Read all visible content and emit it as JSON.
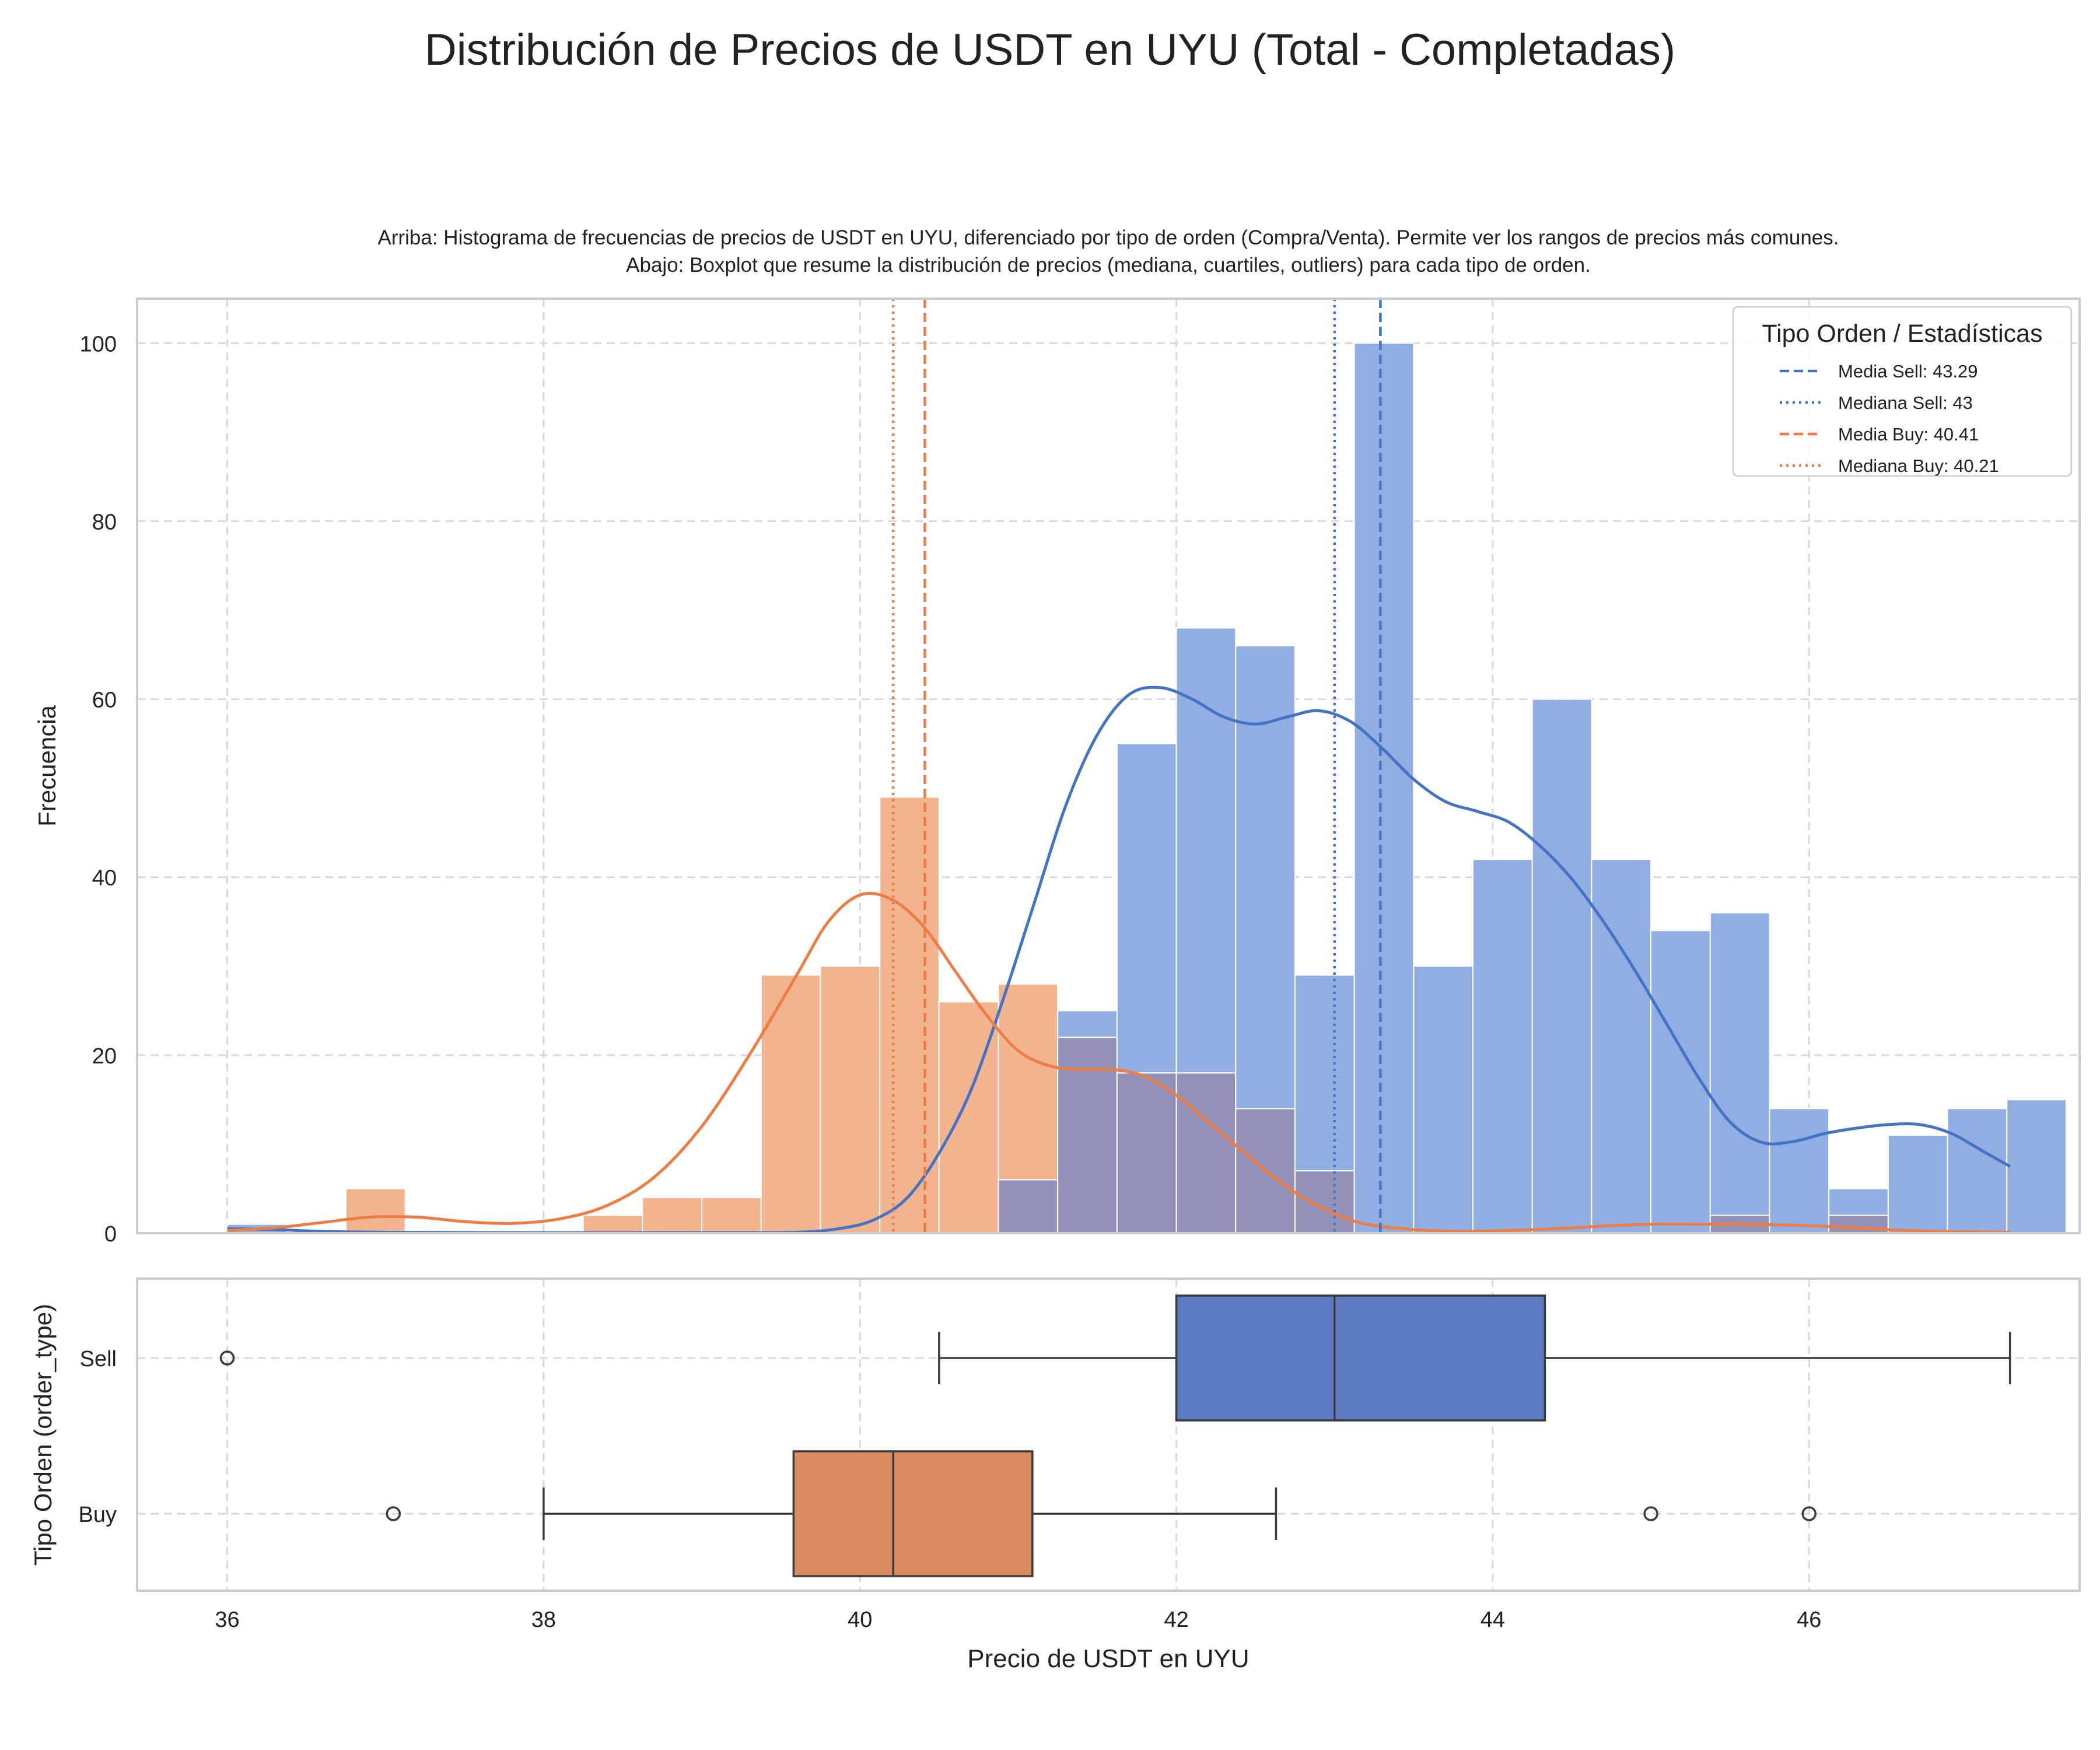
{
  "title": "Distribución de Precios de USDT en UYU (Total - Completadas)",
  "subtitle": [
    "Arriba: Histograma de frecuencias de precios de USDT en UYU, diferenciado por tipo de orden (Compra/Venta). Permite ver los rangos de precios más comunes.",
    "Abajo: Boxplot que resume la distribución de precios (mediana, cuartiles, outliers) para cada tipo de orden."
  ],
  "colors": {
    "sell": "#4472c4",
    "buy": "#ed7d45",
    "sell_fill": "#91aee3",
    "buy_fill": "#f2b48e",
    "overlap_fill": "#9292b8",
    "sell_box": "#5b7cc0",
    "buy_box": "#d98a5e",
    "grid": "#d9d9d9",
    "frame": "#cccccc"
  },
  "chart_data": [
    {
      "type": "histogram",
      "panel": "top",
      "xlabel": "",
      "ylabel": "Frecuencia",
      "xlim": [
        35.43,
        47.71
      ],
      "ylim": [
        0,
        105
      ],
      "x_ticks": [
        36,
        38,
        40,
        42,
        44,
        46
      ],
      "y_ticks": [
        0,
        20,
        40,
        60,
        80,
        100
      ],
      "grid": true,
      "legend_title": "Tipo Orden / Estadísticas",
      "legend_position": "top-right",
      "bin_start": 36.0,
      "bin_width": 0.375,
      "series": [
        {
          "name": "Sell",
          "color_key": "sell",
          "counts": [
            1,
            0,
            0,
            0,
            0,
            0,
            0,
            0,
            0,
            0,
            0,
            0,
            0,
            6,
            25,
            55,
            68,
            66,
            29,
            100,
            30,
            42,
            60,
            42,
            34,
            36,
            14,
            5,
            11,
            14,
            15
          ],
          "kde": [
            [
              36.0,
              0.5
            ],
            [
              36.3,
              0.4
            ],
            [
              36.6,
              0.2
            ],
            [
              37.0,
              0.1
            ],
            [
              38.0,
              0.05
            ],
            [
              39.0,
              0.05
            ],
            [
              39.6,
              0.1
            ],
            [
              39.9,
              0.6
            ],
            [
              40.1,
              1.6
            ],
            [
              40.3,
              4
            ],
            [
              40.5,
              9
            ],
            [
              40.7,
              16
            ],
            [
              40.9,
              26
            ],
            [
              41.1,
              37
            ],
            [
              41.3,
              48
            ],
            [
              41.5,
              56
            ],
            [
              41.7,
              60.5
            ],
            [
              41.9,
              61.3
            ],
            [
              42.1,
              60
            ],
            [
              42.3,
              58
            ],
            [
              42.5,
              57.2
            ],
            [
              42.7,
              58
            ],
            [
              42.9,
              58.7
            ],
            [
              43.1,
              57.5
            ],
            [
              43.3,
              54.5
            ],
            [
              43.5,
              51
            ],
            [
              43.7,
              48.5
            ],
            [
              43.9,
              47.4
            ],
            [
              44.1,
              46.2
            ],
            [
              44.3,
              43.5
            ],
            [
              44.5,
              39.8
            ],
            [
              44.7,
              35
            ],
            [
              44.9,
              29.5
            ],
            [
              45.1,
              23.5
            ],
            [
              45.3,
              17.5
            ],
            [
              45.5,
              12.5
            ],
            [
              45.7,
              10.2
            ],
            [
              45.9,
              10.3
            ],
            [
              46.1,
              11.2
            ],
            [
              46.3,
              11.8
            ],
            [
              46.5,
              12.2
            ],
            [
              46.7,
              12.2
            ],
            [
              46.9,
              11.2
            ],
            [
              47.1,
              9.2
            ],
            [
              47.27,
              7.5
            ]
          ]
        },
        {
          "name": "Buy",
          "color_key": "buy",
          "counts": [
            0,
            0,
            5,
            0,
            0,
            0,
            2,
            4,
            4,
            29,
            30,
            49,
            26,
            28,
            22,
            18,
            18,
            14,
            7,
            0,
            0,
            0,
            0,
            0,
            0,
            2,
            0,
            2,
            0,
            0,
            0
          ],
          "kde": [
            [
              36.0,
              0.3
            ],
            [
              36.3,
              0.6
            ],
            [
              36.6,
              1.2
            ],
            [
              36.9,
              1.8
            ],
            [
              37.2,
              1.8
            ],
            [
              37.5,
              1.3
            ],
            [
              37.8,
              1.1
            ],
            [
              38.1,
              1.6
            ],
            [
              38.4,
              3.1
            ],
            [
              38.7,
              6.3
            ],
            [
              39.0,
              12
            ],
            [
              39.3,
              20
            ],
            [
              39.6,
              29
            ],
            [
              39.8,
              35
            ],
            [
              40.0,
              38
            ],
            [
              40.2,
              37.5
            ],
            [
              40.4,
              34.5
            ],
            [
              40.6,
              29.5
            ],
            [
              40.8,
              24.5
            ],
            [
              41.0,
              20.5
            ],
            [
              41.2,
              18.8
            ],
            [
              41.4,
              18.4
            ],
            [
              41.6,
              18.4
            ],
            [
              41.8,
              17.6
            ],
            [
              42.0,
              15.5
            ],
            [
              42.2,
              12.5
            ],
            [
              42.4,
              9.5
            ],
            [
              42.6,
              6.5
            ],
            [
              42.8,
              4
            ],
            [
              43.0,
              2.2
            ],
            [
              43.2,
              1
            ],
            [
              43.5,
              0.4
            ],
            [
              43.8,
              0.2
            ],
            [
              44.1,
              0.3
            ],
            [
              44.4,
              0.5
            ],
            [
              44.7,
              0.8
            ],
            [
              45.0,
              1
            ],
            [
              45.3,
              1
            ],
            [
              45.6,
              1
            ],
            [
              45.9,
              0.9
            ],
            [
              46.2,
              0.7
            ],
            [
              46.5,
              0.4
            ],
            [
              46.8,
              0.2
            ],
            [
              47.27,
              0.1
            ]
          ]
        }
      ],
      "reference_lines": [
        {
          "label": "Media Sell: 43.29",
          "x": 43.29,
          "style": "dashed",
          "color_key": "sell"
        },
        {
          "label": "Mediana Sell: 43",
          "x": 43.0,
          "style": "dotted",
          "color_key": "sell"
        },
        {
          "label": "Media Buy: 40.41",
          "x": 40.41,
          "style": "dashed",
          "color_key": "buy"
        },
        {
          "label": "Mediana Buy: 40.21",
          "x": 40.21,
          "style": "dotted",
          "color_key": "buy"
        }
      ]
    },
    {
      "type": "boxplot",
      "panel": "bottom",
      "xlabel": "Precio de USDT en UYU",
      "ylabel": "Tipo Orden (order_type)",
      "xlim": [
        35.43,
        47.71
      ],
      "x_ticks": [
        36,
        38,
        40,
        42,
        44,
        46
      ],
      "categories": [
        "Sell",
        "Buy"
      ],
      "grid": true,
      "boxes": [
        {
          "name": "Sell",
          "color_key": "sell_box",
          "whisker_low": 40.5,
          "q1": 42.0,
          "median": 43.0,
          "q3": 44.33,
          "whisker_high": 47.27,
          "outliers": [
            36.0
          ]
        },
        {
          "name": "Buy",
          "color_key": "buy_box",
          "whisker_low": 38.0,
          "q1": 39.58,
          "median": 40.21,
          "q3": 41.09,
          "whisker_high": 42.63,
          "outliers": [
            37.05,
            45.0,
            46.0
          ]
        }
      ]
    }
  ]
}
